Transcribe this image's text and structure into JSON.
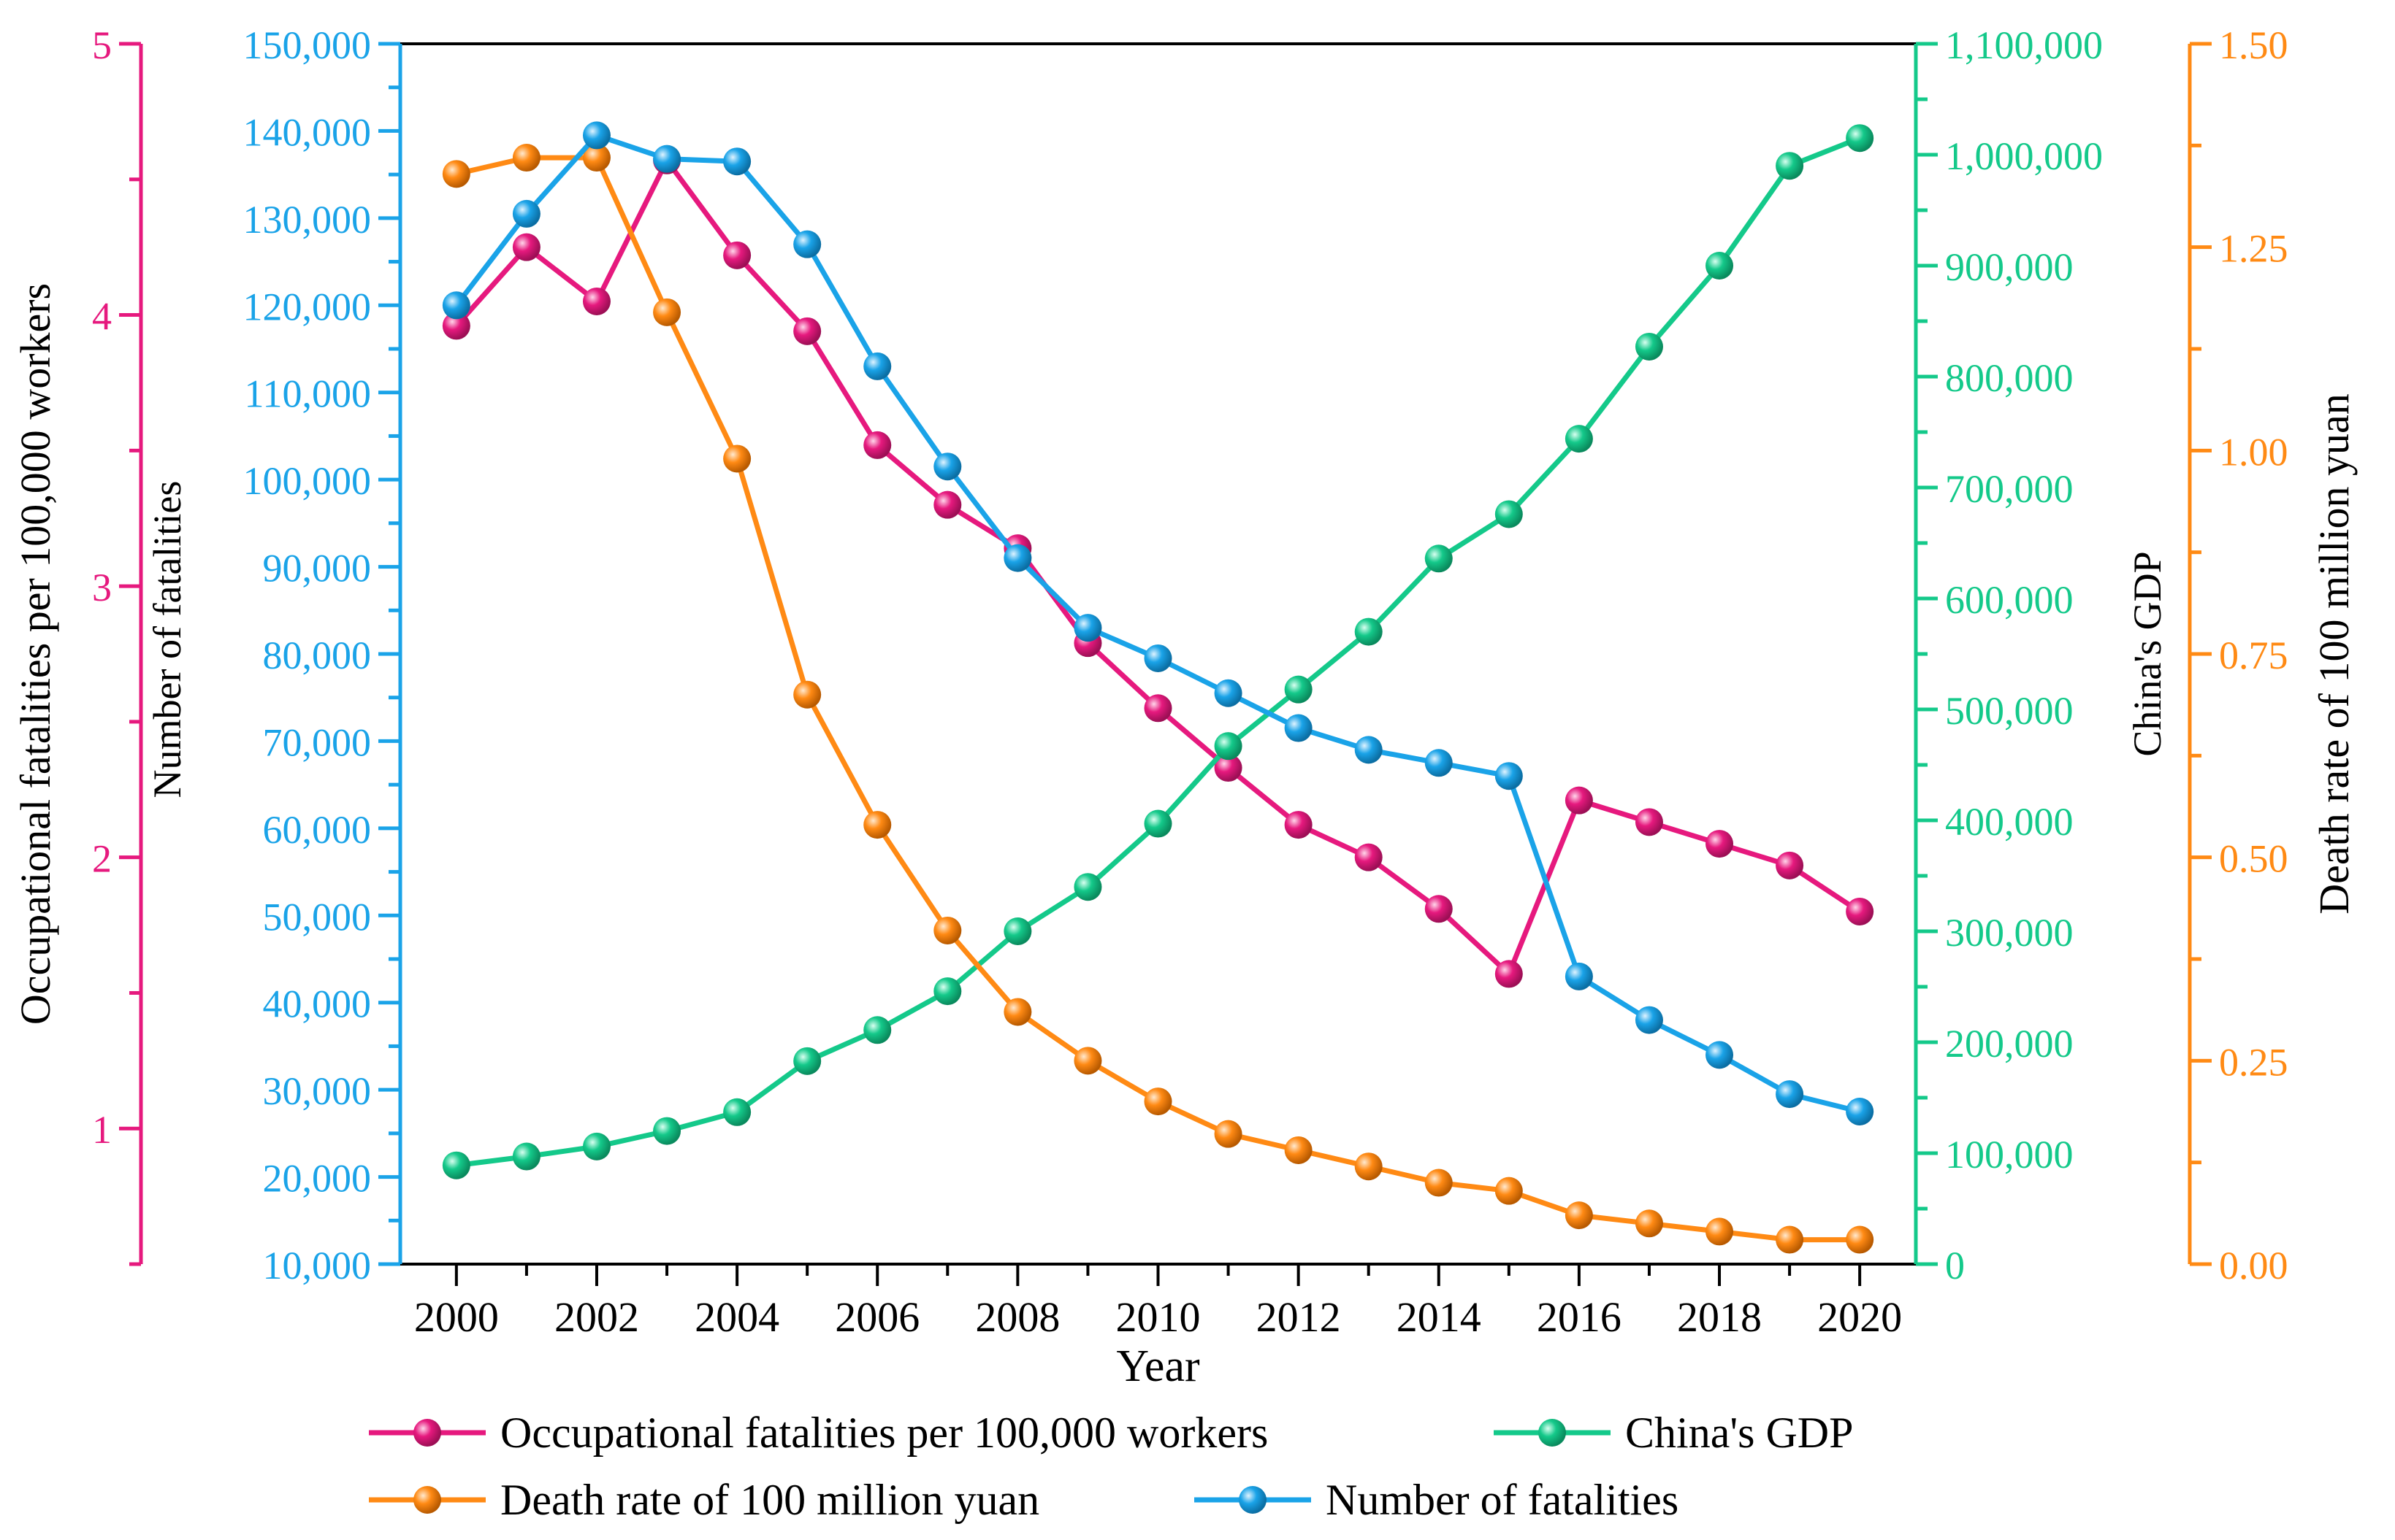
{
  "chart_data": {
    "type": "line",
    "xlabel": "Year",
    "x": [
      2000,
      2001,
      2002,
      2003,
      2004,
      2005,
      2006,
      2007,
      2008,
      2009,
      2010,
      2011,
      2012,
      2013,
      2014,
      2015,
      2016,
      2017,
      2018,
      2019,
      2020
    ],
    "x_ticks": [
      2000,
      2002,
      2004,
      2006,
      2008,
      2010,
      2012,
      2014,
      2016,
      2018,
      2020
    ],
    "axes": {
      "rate_100k": {
        "label": "Occupational fatalities per 100,000 workers",
        "min": 0.5,
        "max": 5,
        "ticks": [
          1,
          2,
          3,
          4,
          5
        ],
        "tick_labels": [
          "1",
          "2",
          "3",
          "4",
          "5"
        ],
        "color": "#e6197e"
      },
      "fatalities": {
        "label": "Number of fatalities",
        "min": 10000,
        "max": 150000,
        "ticks": [
          10000,
          20000,
          30000,
          40000,
          50000,
          60000,
          70000,
          80000,
          90000,
          100000,
          110000,
          120000,
          130000,
          140000,
          150000
        ],
        "tick_labels": [
          "10,000",
          "20,000",
          "30,000",
          "40,000",
          "50,000",
          "60,000",
          "70,000",
          "80,000",
          "90,000",
          "100,000",
          "110,000",
          "120,000",
          "130,000",
          "140,000",
          "150,000"
        ],
        "color": "#1aa3e8"
      },
      "gdp": {
        "label": "China's GDP",
        "min": 0,
        "max": 1100000,
        "ticks": [
          0,
          100000,
          200000,
          300000,
          400000,
          500000,
          600000,
          700000,
          800000,
          900000,
          1000000,
          1100000
        ],
        "tick_labels": [
          "0",
          "100,000",
          "200,000",
          "300,000",
          "400,000",
          "500,000",
          "600,000",
          "700,000",
          "800,000",
          "900,000",
          "1,000,000",
          "1,100,000"
        ],
        "color": "#14c98a"
      },
      "rate_yuan": {
        "label": "Death rate of 100 million yuan",
        "min": 0,
        "max": 1.5,
        "ticks": [
          0,
          0.25,
          0.5,
          0.75,
          1.0,
          1.25,
          1.5
        ],
        "tick_labels": [
          "0.00",
          "0.25",
          "0.50",
          "0.75",
          "1.00",
          "1.25",
          "1.50"
        ],
        "color": "#ff8a14"
      }
    },
    "series": [
      {
        "name": "Occupational fatalities per 100,000 workers",
        "axis": "rate_100k",
        "color": "#e6197e",
        "values": [
          3.96,
          4.25,
          4.05,
          4.57,
          4.22,
          3.94,
          3.52,
          3.3,
          3.14,
          2.79,
          2.55,
          2.33,
          2.12,
          2.0,
          1.81,
          1.57,
          2.21,
          2.13,
          2.05,
          1.97,
          1.8
        ]
      },
      {
        "name": "China's GDP",
        "axis": "gdp",
        "color": "#14c98a",
        "values": [
          89000,
          97000,
          106000,
          120000,
          137000,
          183000,
          211000,
          246000,
          300000,
          340000,
          397000,
          467000,
          518000,
          570000,
          636000,
          676000,
          744000,
          827000,
          900000,
          990000,
          1015000
        ]
      },
      {
        "name": "Death rate of 100 million yuan",
        "axis": "rate_yuan",
        "color": "#ff8a14",
        "values": [
          1.34,
          1.36,
          1.36,
          1.17,
          0.99,
          0.7,
          0.54,
          0.41,
          0.31,
          0.25,
          0.2,
          0.16,
          0.14,
          0.12,
          0.1,
          0.09,
          0.06,
          0.05,
          0.04,
          0.03,
          0.03
        ]
      },
      {
        "name": "Number of fatalities",
        "axis": "fatalities",
        "color": "#1aa3e8",
        "values": [
          120000,
          130500,
          139500,
          136800,
          136500,
          127000,
          113000,
          101500,
          91000,
          83000,
          79500,
          75500,
          71500,
          69000,
          67500,
          66000,
          43000,
          38000,
          34000,
          29500,
          27500
        ]
      }
    ],
    "legend": {
      "placement": "bottom",
      "order": [
        0,
        1,
        2,
        3
      ]
    }
  }
}
